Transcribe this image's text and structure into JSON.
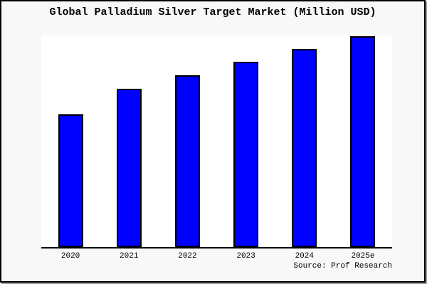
{
  "page": {
    "background_color": "#f8f8f8",
    "frame_color": "#000000",
    "shadow_color": "#9a9a9a"
  },
  "title": "Global Palladium Silver Target Market (Million USD)",
  "source": "Source: Prof Research",
  "chart_data": {
    "type": "bar",
    "title": "Global Palladium Silver Target Market (Million USD)",
    "categories": [
      "2020",
      "2021",
      "2022",
      "2023",
      "2024",
      "2025e"
    ],
    "values": [
      62.6,
      75.0,
      81.3,
      87.6,
      93.7,
      99.7
    ],
    "values_note": "y-axis is unlabeled; values are bar heights as percent of the tallest-bar scale read from pixels",
    "xlabel": "",
    "ylabel": "",
    "ylim": [
      0,
      100
    ],
    "grid": false,
    "legend": "none",
    "bar_color": "#0000ff",
    "bar_border_color": "#000000",
    "plot_bg_color": "#ffffff",
    "axis_line_color": "#000000"
  }
}
